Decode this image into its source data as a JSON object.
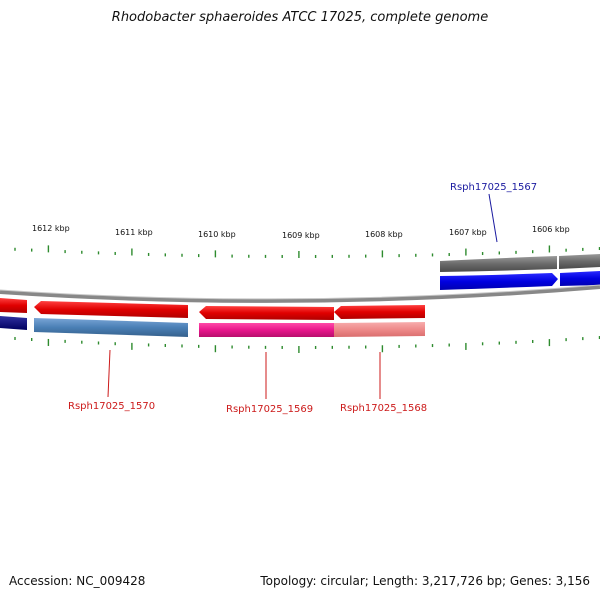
{
  "title": "Rhodobacter sphaeroides ATCC 17025, complete genome",
  "footer": {
    "accession": "Accession: NC_009428",
    "summary": "Topology: circular; Length: 3,217,726 bp; Genes: 3,156"
  },
  "scale": {
    "labels": [
      "1612 kbp",
      "1611 kbp",
      "1610 kbp",
      "1609 kbp",
      "1608 kbp",
      "1607 kbp",
      "1606 kbp"
    ],
    "tick_color": "#2e8b2e"
  },
  "genes": [
    {
      "id": "Rsph17025_1567",
      "color": "#1a1aa0"
    },
    {
      "id": "Rsph17025_1570",
      "color": "#cc1a1a"
    },
    {
      "id": "Rsph17025_1569",
      "color": "#cc1a1a"
    },
    {
      "id": "Rsph17025_1568",
      "color": "#cc1a1a"
    }
  ],
  "colors": {
    "cds_forward": "#0000ee",
    "cds_reverse": "#ee1111",
    "gene_gray": "#666666",
    "steel_blue": "#4a7fb5",
    "magenta": "#e8168c",
    "pink": "#ee8a8a",
    "backbone": "#888888"
  }
}
